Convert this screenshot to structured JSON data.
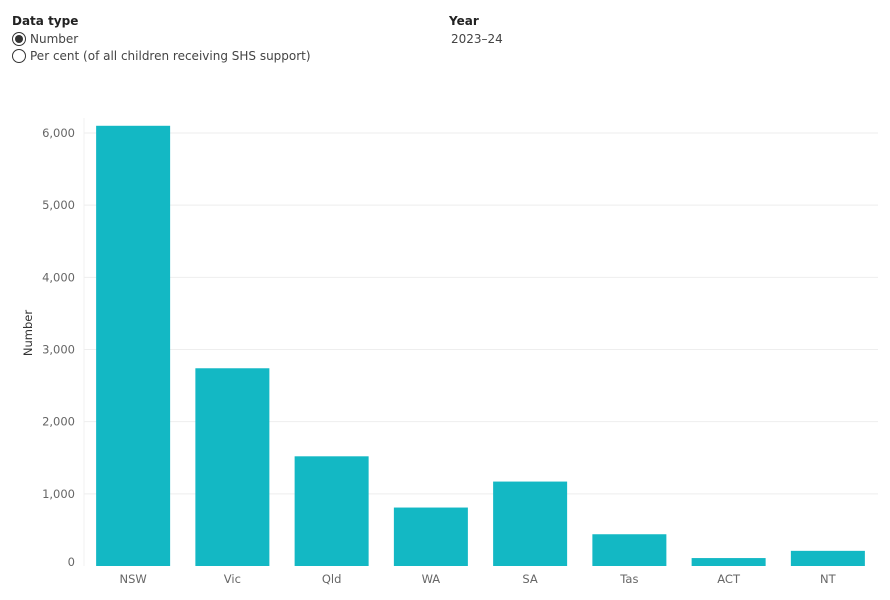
{
  "filters": {
    "data_type": {
      "title": "Data type",
      "options": [
        {
          "label": "Number",
          "selected": true
        },
        {
          "label": "Per cent (of all children receiving SHS support)",
          "selected": false
        }
      ]
    },
    "year": {
      "title": "Year",
      "value": "2023–24"
    }
  },
  "chart_data": {
    "type": "bar",
    "categories": [
      "NSW",
      "Vic",
      "Qld",
      "WA",
      "SA",
      "Tas",
      "ACT",
      "NT"
    ],
    "values": [
      6100,
      2740,
      1520,
      810,
      1170,
      440,
      110,
      210
    ],
    "ylabel": "Number",
    "xlabel": "",
    "ylim": [
      0,
      6000
    ],
    "yticks": [
      0,
      1000,
      2000,
      3000,
      4000,
      5000,
      6000
    ],
    "ytick_labels": [
      "0",
      "1,000",
      "2,000",
      "3,000",
      "4,000",
      "5,000",
      "6,000"
    ],
    "bar_color": "#13B8C4",
    "grid": true
  }
}
